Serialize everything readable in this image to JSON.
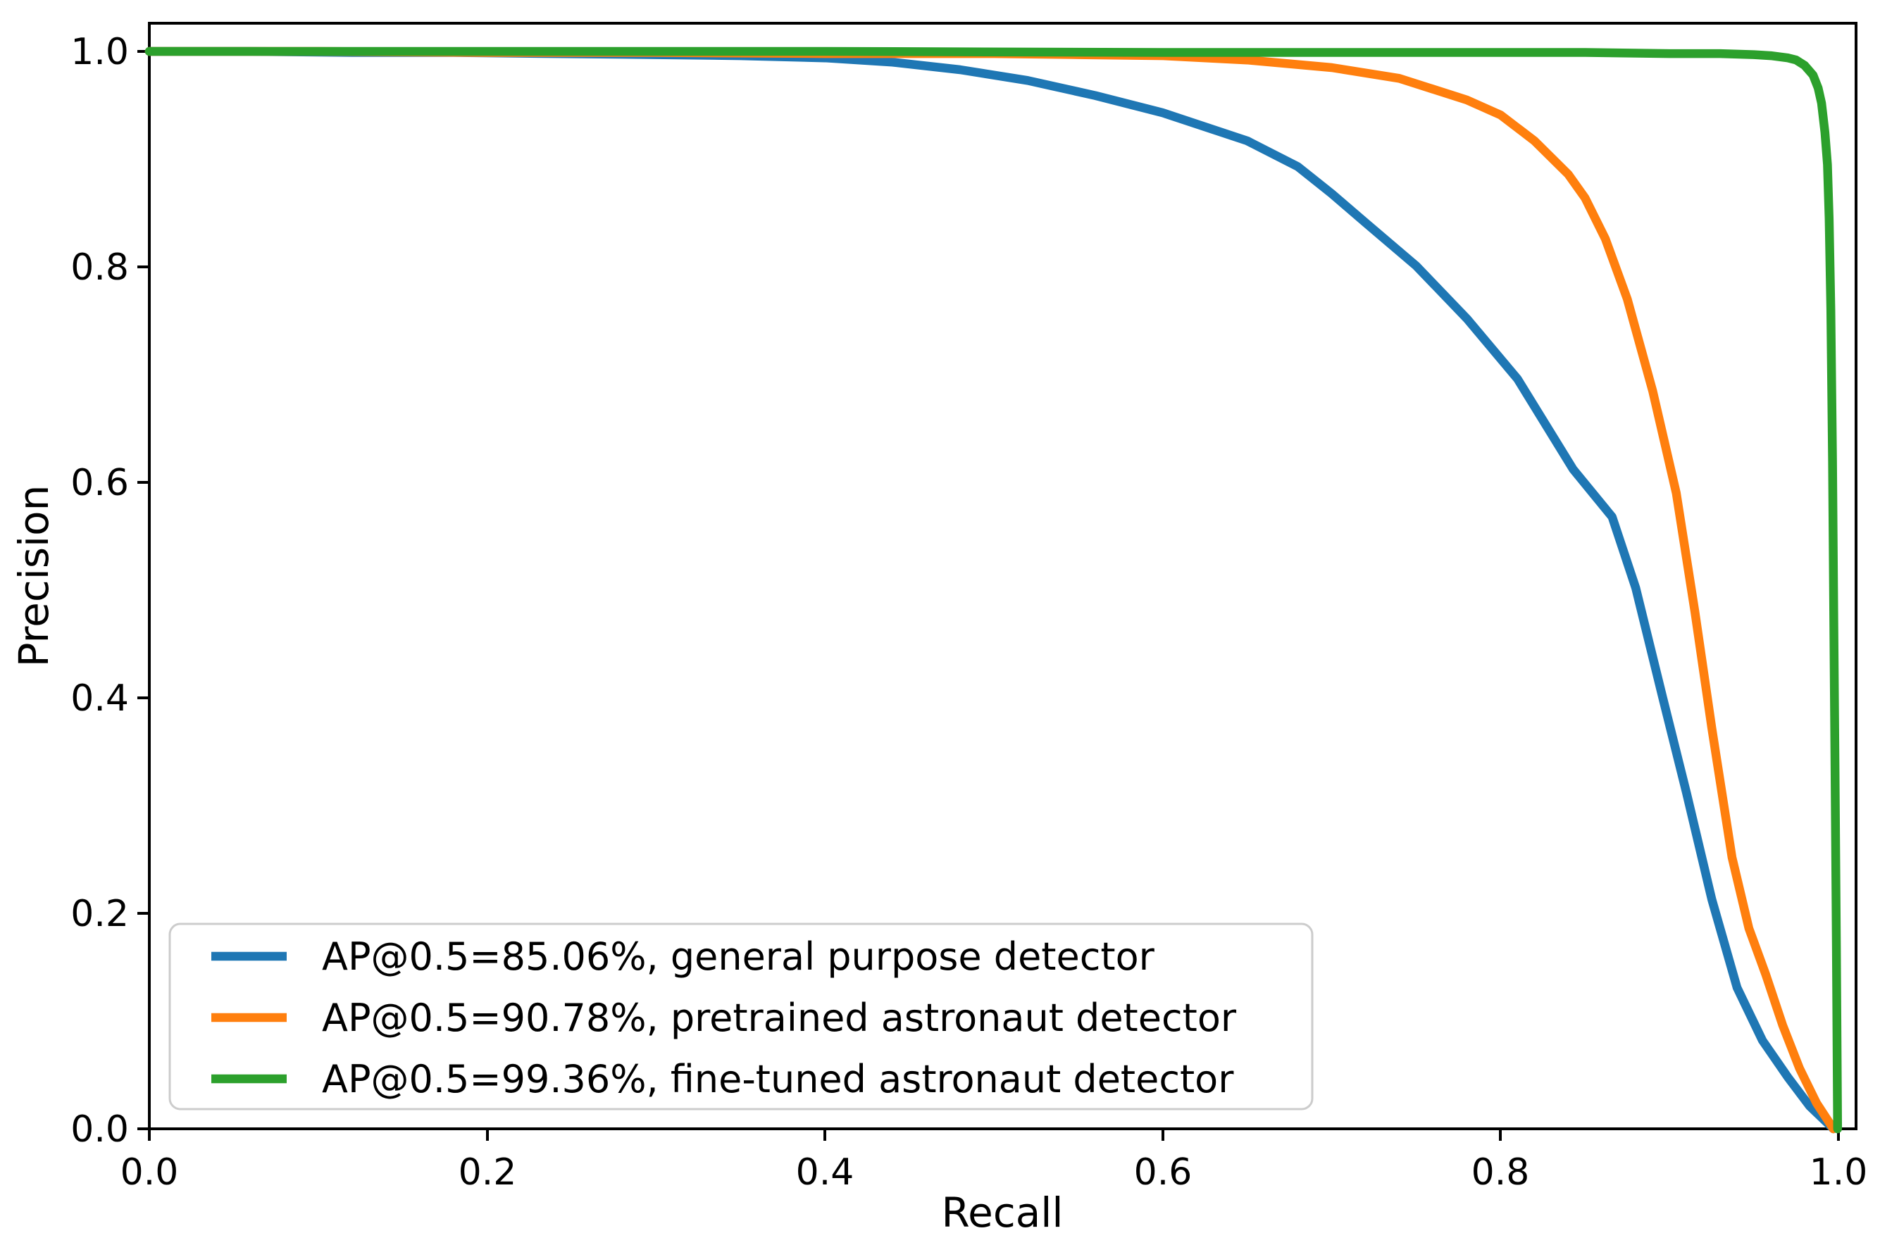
{
  "figure": {
    "background": "#ffffff",
    "spine_color": "#000000",
    "text_color": "#000000"
  },
  "chart_data": {
    "type": "line",
    "title": "",
    "xlabel": "Recall",
    "ylabel": "Precision",
    "xlim": [
      0.0,
      1.01
    ],
    "ylim": [
      0.0,
      1.026
    ],
    "grid": false,
    "legend_position": "lower left",
    "x_tick_values": [
      0.0,
      0.2,
      0.4,
      0.6,
      0.8,
      1.0
    ],
    "y_tick_values": [
      0.0,
      0.2,
      0.4,
      0.6,
      0.8,
      1.0
    ],
    "x_tick_labels": [
      "0.0",
      "0.2",
      "0.4",
      "0.6",
      "0.8",
      "1.0"
    ],
    "y_tick_labels": [
      "0.0",
      "0.2",
      "0.4",
      "0.6",
      "0.8",
      "1.0"
    ],
    "series": [
      {
        "name": "general purpose detector",
        "label": "AP@0.5=85.06%, general purpose detector",
        "ap_at_0_5": "85.06%",
        "color": "#1f77b4",
        "points": [
          [
            0.0,
            1.0
          ],
          [
            0.06,
            1.0
          ],
          [
            0.12,
            0.999
          ],
          [
            0.18,
            0.999
          ],
          [
            0.24,
            0.998
          ],
          [
            0.3,
            0.997
          ],
          [
            0.35,
            0.996
          ],
          [
            0.4,
            0.994
          ],
          [
            0.44,
            0.99
          ],
          [
            0.48,
            0.983
          ],
          [
            0.52,
            0.973
          ],
          [
            0.56,
            0.959
          ],
          [
            0.6,
            0.943
          ],
          [
            0.65,
            0.917
          ],
          [
            0.68,
            0.893
          ],
          [
            0.7,
            0.868
          ],
          [
            0.72,
            0.841
          ],
          [
            0.75,
            0.801
          ],
          [
            0.78,
            0.752
          ],
          [
            0.81,
            0.696
          ],
          [
            0.843,
            0.612
          ],
          [
            0.866,
            0.568
          ],
          [
            0.88,
            0.502
          ],
          [
            0.896,
            0.4
          ],
          [
            0.91,
            0.312
          ],
          [
            0.925,
            0.213
          ],
          [
            0.94,
            0.131
          ],
          [
            0.955,
            0.082
          ],
          [
            0.97,
            0.048
          ],
          [
            0.983,
            0.021
          ],
          [
            0.997,
            0.0
          ]
        ]
      },
      {
        "name": "pretrained astronaut detector",
        "label": "AP@0.5=90.78%, pretrained astronaut detector",
        "ap_at_0_5": "90.78%",
        "color": "#ff7f0e",
        "points": [
          [
            0.0,
            1.0
          ],
          [
            0.1,
            1.0
          ],
          [
            0.2,
            0.999
          ],
          [
            0.3,
            0.999
          ],
          [
            0.4,
            0.998
          ],
          [
            0.5,
            0.998
          ],
          [
            0.55,
            0.997
          ],
          [
            0.6,
            0.996
          ],
          [
            0.65,
            0.992
          ],
          [
            0.7,
            0.985
          ],
          [
            0.74,
            0.975
          ],
          [
            0.78,
            0.955
          ],
          [
            0.8,
            0.941
          ],
          [
            0.82,
            0.917
          ],
          [
            0.84,
            0.886
          ],
          [
            0.85,
            0.864
          ],
          [
            0.862,
            0.826
          ],
          [
            0.875,
            0.77
          ],
          [
            0.89,
            0.685
          ],
          [
            0.904,
            0.59
          ],
          [
            0.915,
            0.48
          ],
          [
            0.925,
            0.372
          ],
          [
            0.937,
            0.252
          ],
          [
            0.947,
            0.186
          ],
          [
            0.957,
            0.143
          ],
          [
            0.967,
            0.096
          ],
          [
            0.977,
            0.056
          ],
          [
            0.987,
            0.024
          ],
          [
            0.997,
            0.0
          ]
        ]
      },
      {
        "name": "fine-tuned astronaut detector",
        "label": "AP@0.5=99.36%, fine-tuned astronaut detector",
        "ap_at_0_5": "99.36%",
        "color": "#2ca02c",
        "points": [
          [
            0.0,
            1.0
          ],
          [
            0.2,
            1.0
          ],
          [
            0.4,
            1.0
          ],
          [
            0.6,
            0.999
          ],
          [
            0.75,
            0.999
          ],
          [
            0.85,
            0.999
          ],
          [
            0.9,
            0.998
          ],
          [
            0.93,
            0.998
          ],
          [
            0.95,
            0.997
          ],
          [
            0.96,
            0.996
          ],
          [
            0.97,
            0.994
          ],
          [
            0.975,
            0.992
          ],
          [
            0.98,
            0.987
          ],
          [
            0.985,
            0.978
          ],
          [
            0.988,
            0.966
          ],
          [
            0.99,
            0.952
          ],
          [
            0.992,
            0.925
          ],
          [
            0.9935,
            0.895
          ],
          [
            0.9945,
            0.845
          ],
          [
            0.9955,
            0.76
          ],
          [
            0.9965,
            0.62
          ],
          [
            0.9972,
            0.48
          ],
          [
            0.998,
            0.33
          ],
          [
            0.9988,
            0.17
          ],
          [
            0.9995,
            0.0
          ]
        ]
      }
    ]
  }
}
